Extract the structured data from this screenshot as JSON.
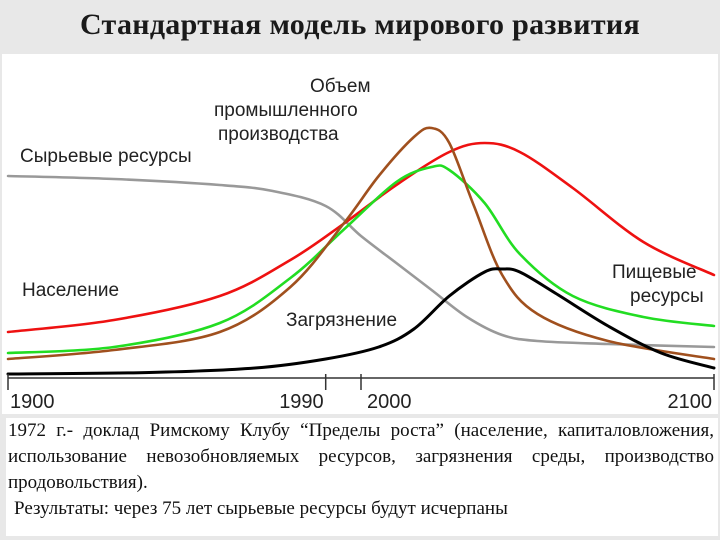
{
  "slide_title": "Стандартная модель мирового развития",
  "caption": {
    "paragraph": "1972 г.- доклад Римскому Клубу “Пределы роста” (население, капиталовложения, использование невозобновляемых ресурсов, загрязнения среды, производство продовольствия).",
    "result": "Результаты: через 75 лет сырьевые ресурсы будут исчерпаны"
  },
  "chart_data": {
    "type": "line",
    "title": "",
    "xlabel": "",
    "ylabel": "",
    "xlim": [
      1900,
      2100
    ],
    "ylim": [
      0,
      1
    ],
    "x_ticks": [
      1900,
      1990,
      2000,
      2100
    ],
    "grid": false,
    "legend": "inline-labels",
    "series": [
      {
        "name": "Сырьевые ресурсы",
        "color": "#999999",
        "x": [
          1900,
          1930,
          1960,
          1975,
          1990,
          2000,
          2010,
          2020,
          2030,
          2040,
          2050,
          2070,
          2100
        ],
        "y": [
          0.66,
          0.65,
          0.63,
          0.61,
          0.56,
          0.46,
          0.37,
          0.28,
          0.19,
          0.13,
          0.11,
          0.1,
          0.09
        ]
      },
      {
        "name": "Население",
        "color": "#ee1111",
        "x": [
          1900,
          1930,
          1960,
          1980,
          1995,
          2010,
          2025,
          2035,
          2045,
          2060,
          2080,
          2100
        ],
        "y": [
          0.14,
          0.18,
          0.26,
          0.38,
          0.5,
          0.63,
          0.74,
          0.77,
          0.74,
          0.62,
          0.44,
          0.33
        ]
      },
      {
        "name": "Пищевые ресурсы",
        "color": "#22dd22",
        "x": [
          1900,
          1930,
          1960,
          1980,
          1995,
          2010,
          2020,
          2025,
          2035,
          2045,
          2060,
          2080,
          2100
        ],
        "y": [
          0.07,
          0.09,
          0.17,
          0.32,
          0.48,
          0.64,
          0.69,
          0.68,
          0.57,
          0.4,
          0.26,
          0.19,
          0.16
        ]
      },
      {
        "name": "Объем промышленного производства",
        "color": "#a0501e",
        "x": [
          1900,
          1930,
          1960,
          1980,
          1995,
          2005,
          2015,
          2020,
          2025,
          2032,
          2040,
          2050,
          2070,
          2100
        ],
        "y": [
          0.05,
          0.08,
          0.14,
          0.29,
          0.5,
          0.66,
          0.79,
          0.82,
          0.77,
          0.56,
          0.33,
          0.2,
          0.11,
          0.05
        ]
      },
      {
        "name": "Загрязнение",
        "color": "#000000",
        "x": [
          1900,
          1940,
          1970,
          1990,
          2005,
          2015,
          2025,
          2035,
          2040,
          2045,
          2055,
          2070,
          2085,
          2100
        ],
        "y": [
          0.0,
          0.005,
          0.02,
          0.05,
          0.09,
          0.15,
          0.26,
          0.34,
          0.35,
          0.34,
          0.27,
          0.16,
          0.07,
          0.02
        ]
      }
    ],
    "labels": [
      {
        "text": "Объем",
        "series": "Объем промышленного производства"
      },
      {
        "text": "промышленного",
        "series": "Объем промышленного производства"
      },
      {
        "text": "производства",
        "series": "Объем промышленного производства"
      },
      {
        "text": "Сырьевые ресурсы",
        "series": "Сырьевые ресурсы"
      },
      {
        "text": "Население",
        "series": "Население"
      },
      {
        "text": "Пищевые",
        "series": "Пищевые ресурсы"
      },
      {
        "text": "ресурсы",
        "series": "Пищевые ресурсы"
      },
      {
        "text": "Загрязнение",
        "series": "Загрязнение"
      }
    ]
  }
}
